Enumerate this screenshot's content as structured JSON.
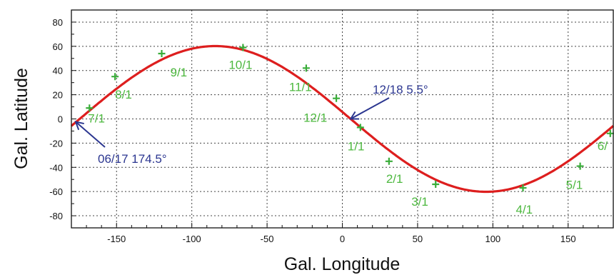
{
  "chart_data": {
    "type": "line",
    "xlabel": "Gal. Longitude",
    "ylabel": "Gal. Latitude",
    "xlim": [
      -180,
      180
    ],
    "ylim": [
      -90,
      90
    ],
    "x_ticks": [
      -150,
      -100,
      -50,
      0,
      50,
      100,
      150
    ],
    "y_ticks": [
      80,
      60,
      40,
      20,
      0,
      -20,
      -40,
      -60,
      -80
    ],
    "grid": true,
    "curve": {
      "amplitude_deg": 60.2,
      "peak_longitude": -84.5,
      "zero_crossing_longitude": 5.5
    },
    "markers": [
      {
        "label": "7/1",
        "x": -168,
        "y": 9
      },
      {
        "label": "8/1",
        "x": -151,
        "y": 35
      },
      {
        "label": "9/1",
        "x": -120,
        "y": 54
      },
      {
        "label": "10/1",
        "x": -66,
        "y": 59
      },
      {
        "label": "11/1",
        "x": -24,
        "y": 42
      },
      {
        "label": "12/1",
        "x": -4,
        "y": 17
      },
      {
        "label": "1/1",
        "x": 12,
        "y": -7
      },
      {
        "label": "2/1",
        "x": 31,
        "y": -35
      },
      {
        "label": "3/1",
        "x": 62,
        "y": -54
      },
      {
        "label": "4/1",
        "x": 120,
        "y": -57
      },
      {
        "label": "5/1",
        "x": 158,
        "y": -39
      },
      {
        "label": "6/",
        "x": 178,
        "y": -12
      }
    ],
    "annotations": [
      {
        "text": "12/18 5.5°",
        "x": 5.5,
        "y": 0
      },
      {
        "text": "06/17 174.5°",
        "x": -174.5,
        "y": 0
      }
    ],
    "colors": {
      "curve": "#dd1e1e",
      "marker": "#3aad3a",
      "date_label": "#4db83f",
      "callout": "#2b3690",
      "grid": "#444444"
    }
  }
}
